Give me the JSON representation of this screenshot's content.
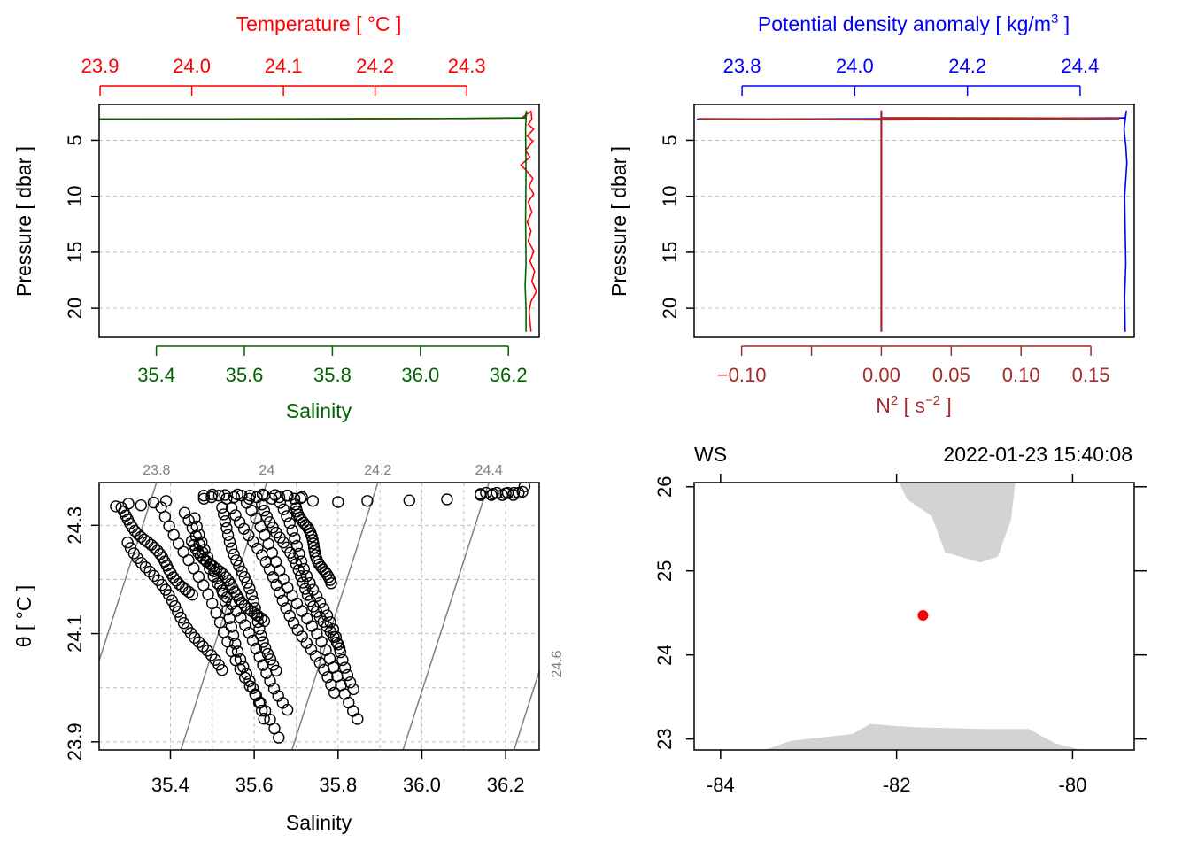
{
  "colors": {
    "temperature": "#ff0000",
    "salinity": "#006400",
    "density": "#0000ff",
    "n2": "#a52a2a",
    "grid": "#bdbdbd",
    "isopycnal": "#808080",
    "land": "#d3d3d3",
    "station": "#ff0000"
  },
  "chart_data": [
    {
      "type": "line",
      "panel": "profile-ts",
      "ylabel": "Pressure [ dbar ]",
      "ylim": [
        22.6,
        1.8
      ],
      "yticks": [
        5,
        10,
        15,
        20
      ],
      "grid": true,
      "top_axis": {
        "label": "Temperature [ °C ]",
        "lim": [
          23.899,
          24.379
        ],
        "ticks": [
          23.9,
          24.0,
          24.1,
          24.2,
          24.3
        ],
        "tick_labels": [
          "23.9",
          "24.0",
          "24.1",
          "24.2",
          "24.3"
        ]
      },
      "bottom_axis": {
        "label": "Salinity",
        "lim": [
          35.27,
          36.27
        ],
        "ticks": [
          35.4,
          35.6,
          35.8,
          36.0,
          36.2
        ],
        "tick_labels": [
          "35.4",
          "35.6",
          "35.8",
          "36.0",
          "36.2"
        ]
      },
      "series": [
        {
          "name": "Temperature",
          "axis": "top",
          "points": [
            [
              23.9,
              3.1
            ],
            [
              24.1,
              3.1
            ],
            [
              24.3,
              3.05
            ],
            [
              24.36,
              3.0
            ],
            [
              24.37,
              2.4
            ],
            [
              24.371,
              3.1
            ],
            [
              24.367,
              3.6
            ],
            [
              24.373,
              4.0
            ],
            [
              24.366,
              4.6
            ],
            [
              24.372,
              5.1
            ],
            [
              24.364,
              5.9
            ],
            [
              24.369,
              6.5
            ],
            [
              24.359,
              7.2
            ],
            [
              24.365,
              7.7
            ],
            [
              24.372,
              8.4
            ],
            [
              24.368,
              9.1
            ],
            [
              24.373,
              9.8
            ],
            [
              24.367,
              10.5
            ],
            [
              24.371,
              11.4
            ],
            [
              24.366,
              12.3
            ],
            [
              24.37,
              13.1
            ],
            [
              24.367,
              14.0
            ],
            [
              24.373,
              14.9
            ],
            [
              24.369,
              15.8
            ],
            [
              24.374,
              16.7
            ],
            [
              24.371,
              17.6
            ],
            [
              24.376,
              18.5
            ],
            [
              24.37,
              19.4
            ],
            [
              24.368,
              20.3
            ],
            [
              24.369,
              21.2
            ],
            [
              24.37,
              22.1
            ]
          ]
        },
        {
          "name": "Salinity",
          "axis": "bottom",
          "points": [
            [
              35.27,
              3.1
            ],
            [
              35.7,
              3.08
            ],
            [
              36.1,
              3.04
            ],
            [
              36.2,
              3.0
            ],
            [
              36.238,
              3.0
            ],
            [
              36.241,
              2.4
            ],
            [
              36.239,
              4.0
            ],
            [
              36.24,
              8.0
            ],
            [
              36.239,
              12.0
            ],
            [
              36.24,
              16.0
            ],
            [
              36.238,
              18.0
            ],
            [
              36.24,
              20.0
            ],
            [
              36.24,
              22.1
            ]
          ]
        }
      ]
    },
    {
      "type": "line",
      "panel": "profile-density-n2",
      "ylabel": "Pressure [ dbar ]",
      "ylim": [
        22.6,
        1.8
      ],
      "yticks": [
        5,
        10,
        15,
        20
      ],
      "grid": true,
      "top_axis": {
        "label": "Potential density anomaly [ kg/m3 ]",
        "label_main": "Potential density anomaly [ kg/m",
        "label_sup": "3",
        "label_end": " ]",
        "lim": [
          23.715,
          24.496
        ],
        "ticks": [
          23.8,
          24.0,
          24.2,
          24.4
        ],
        "tick_labels": [
          "23.8",
          "24.0",
          "24.2",
          "24.4"
        ]
      },
      "bottom_axis": {
        "label": "N2 [ s-2 ]",
        "label_main": "N",
        "label_sup": "2",
        "label_mid": " [ s",
        "label_sup2": "−2",
        "label_end": " ]",
        "lim": [
          -0.134,
          0.181
        ],
        "ticks": [
          -0.1,
          -0.05,
          0.0,
          0.05,
          0.1,
          0.15
        ],
        "tick_labels": [
          "−0.10",
          "",
          "0.00",
          "0.05",
          "0.10",
          "0.15"
        ]
      },
      "series": [
        {
          "name": "Density",
          "axis": "top",
          "points": [
            [
              23.72,
              3.1
            ],
            [
              24.0,
              3.08
            ],
            [
              24.3,
              3.04
            ],
            [
              24.45,
              3.0
            ],
            [
              24.48,
              3.0
            ],
            [
              24.482,
              2.4
            ],
            [
              24.478,
              4.0
            ],
            [
              24.481,
              5.5
            ],
            [
              24.483,
              7.0
            ],
            [
              24.479,
              10.0
            ],
            [
              24.48,
              13.0
            ],
            [
              24.481,
              16.0
            ],
            [
              24.479,
              19.0
            ],
            [
              24.48,
              22.1
            ]
          ]
        },
        {
          "name": "N2",
          "axis": "bottom",
          "points": [
            [
              -0.13,
              3.1
            ],
            [
              0.0,
              3.15
            ],
            [
              0.17,
              3.05
            ],
            [
              0.0,
              3.0
            ],
            [
              0.0,
              2.4
            ],
            [
              0.0,
              3.3
            ],
            [
              0.0,
              4.0
            ],
            [
              0.0,
              10.0
            ],
            [
              0.0,
              16.0
            ],
            [
              0.0,
              22.1
            ]
          ]
        }
      ]
    },
    {
      "type": "scatter",
      "panel": "ts-diagram",
      "xlabel": "Salinity",
      "ylabel": "θ [ °C ]",
      "xlim": [
        35.23,
        36.28
      ],
      "ylim": [
        23.885,
        24.379
      ],
      "xticks": [
        35.4,
        35.6,
        35.8,
        36.0,
        36.2
      ],
      "yticks": [
        23.9,
        24.1,
        24.3
      ],
      "grid_x": [
        35.4,
        35.5,
        35.6,
        35.7,
        35.8,
        35.9,
        36.0,
        36.1,
        36.2
      ],
      "grid_y": [
        23.9,
        24.0,
        24.1,
        24.2,
        24.3
      ],
      "isopycnals": [
        {
          "label": "23.8",
          "points": [
            [
              35.23,
              24.05
            ],
            [
              35.367,
              24.379
            ]
          ]
        },
        {
          "label": "24",
          "points": [
            [
              35.425,
              23.885
            ],
            [
              35.63,
              24.379
            ]
          ]
        },
        {
          "label": "24.2",
          "points": [
            [
              35.69,
              23.885
            ],
            [
              35.895,
              24.379
            ]
          ]
        },
        {
          "label": "24.4",
          "points": [
            [
              35.955,
              23.885
            ],
            [
              36.16,
              24.379
            ]
          ]
        },
        {
          "label": "24.6",
          "points": [
            [
              36.22,
              23.885
            ],
            [
              36.28,
              24.03
            ]
          ]
        }
      ],
      "strands": [
        {
          "s0": 35.38,
          "t0": 24.335,
          "s1": 35.655,
          "t1": 23.905
        },
        {
          "s0": 35.43,
          "t0": 24.32,
          "s1": 35.68,
          "t1": 23.96
        },
        {
          "s0": 35.46,
          "t0": 24.315,
          "s1": 35.62,
          "t1": 23.94
        },
        {
          "s0": 35.52,
          "t0": 24.33,
          "s1": 35.65,
          "t1": 24.03
        },
        {
          "s0": 35.55,
          "t0": 24.335,
          "s1": 35.79,
          "t1": 23.99
        },
        {
          "s0": 35.58,
          "t0": 24.34,
          "s1": 35.85,
          "t1": 23.945
        },
        {
          "s0": 35.62,
          "t0": 24.34,
          "s1": 35.8,
          "t1": 24.07
        },
        {
          "s0": 35.66,
          "t0": 24.34,
          "s1": 35.84,
          "t1": 24.0
        },
        {
          "s0": 35.7,
          "t0": 24.34,
          "s1": 35.78,
          "t1": 24.19
        },
        {
          "s0": 35.3,
          "t0": 24.27,
          "s1": 35.52,
          "t1": 24.03
        },
        {
          "s0": 35.28,
          "t0": 24.33,
          "s1": 35.45,
          "t1": 24.17
        },
        {
          "s0": 35.45,
          "t0": 24.27,
          "s1": 35.62,
          "t1": 24.12
        }
      ],
      "top_row": [
        [
          35.27,
          24.335
        ],
        [
          35.3,
          24.34
        ],
        [
          35.33,
          24.337
        ],
        [
          35.36,
          24.342
        ],
        [
          35.39,
          24.345
        ],
        [
          35.48,
          24.355
        ],
        [
          35.5,
          24.357
        ],
        [
          35.53,
          24.356
        ],
        [
          35.56,
          24.357
        ],
        [
          35.59,
          24.355
        ],
        [
          35.62,
          24.357
        ],
        [
          35.65,
          24.356
        ],
        [
          35.68,
          24.355
        ],
        [
          35.71,
          24.35
        ],
        [
          35.74,
          24.345
        ],
        [
          35.8,
          24.343
        ],
        [
          35.87,
          24.345
        ],
        [
          35.97,
          24.346
        ],
        [
          36.06,
          24.348
        ],
        [
          36.14,
          24.358
        ],
        [
          36.17,
          24.358
        ],
        [
          36.2,
          24.359
        ],
        [
          36.22,
          24.36
        ],
        [
          36.24,
          24.362
        ],
        [
          36.245,
          24.372
        ]
      ]
    },
    {
      "type": "scatter",
      "panel": "map",
      "title_left": "WS",
      "title_right": "2022-01-23 15:40:08",
      "xlim": [
        -84.3,
        -79.3
      ],
      "ylim": [
        22.87,
        26.05
      ],
      "xticks": [
        -84,
        -82,
        -80
      ],
      "xtick_labels": [
        "-84",
        "-82",
        "-80"
      ],
      "yticks": [
        23,
        24,
        25,
        26
      ],
      "ytick_labels": [
        "23",
        "24",
        "25",
        "26"
      ],
      "station": [
        -81.7,
        24.47
      ],
      "land_north": [
        [
          -81.97,
          26.05
        ],
        [
          -81.88,
          25.85
        ],
        [
          -81.6,
          25.65
        ],
        [
          -81.45,
          25.22
        ],
        [
          -81.05,
          25.1
        ],
        [
          -80.85,
          25.17
        ],
        [
          -80.7,
          25.6
        ],
        [
          -80.65,
          26.05
        ]
      ],
      "land_south": [
        [
          -83.5,
          22.87
        ],
        [
          -83.2,
          22.98
        ],
        [
          -82.5,
          23.06
        ],
        [
          -82.3,
          23.18
        ],
        [
          -81.8,
          23.14
        ],
        [
          -81.0,
          23.12
        ],
        [
          -80.5,
          23.12
        ],
        [
          -80.2,
          22.95
        ],
        [
          -79.9,
          22.87
        ]
      ]
    }
  ]
}
